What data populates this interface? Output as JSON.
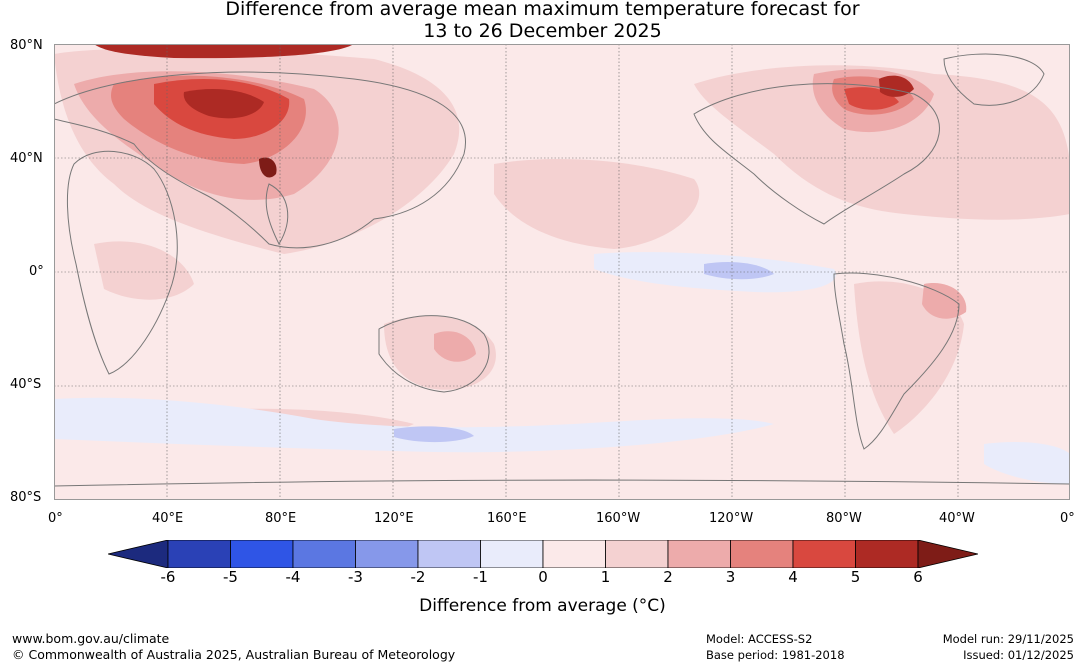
{
  "title": {
    "line1": "Difference from average mean maximum temperature forecast for",
    "line2": "13 to 26 December 2025"
  },
  "map": {
    "lat_labels": [
      "80°N",
      "40°N",
      "0°",
      "40°S",
      "80°S"
    ],
    "lon_labels": [
      "0°",
      "40°E",
      "80°E",
      "120°E",
      "160°E",
      "160°W",
      "120°W",
      "80°W",
      "40°W",
      "0°"
    ]
  },
  "colorbar": {
    "title": "Difference from average (°C)",
    "ticks": [
      "-6",
      "-5",
      "-4",
      "-3",
      "-2",
      "-1",
      "0",
      "1",
      "2",
      "3",
      "4",
      "5",
      "6"
    ],
    "colors": [
      "#1c2a7e",
      "#2a41b6",
      "#2f55e6",
      "#5b77e2",
      "#8698ea",
      "#bfc6f4",
      "#e9ecfb",
      "#fbe9e9",
      "#f4d1d1",
      "#edabab",
      "#e5827d",
      "#d9483f",
      "#ad2a24",
      "#7e1c17"
    ]
  },
  "footer": {
    "site": "www.bom.gov.au/climate",
    "copyright": "© Commonwealth of Australia 2025, Australian Bureau of Meteorology",
    "model": "Model: ACCESS-S2",
    "base_period": "Base period: 1981-2018",
    "model_run": "Model run: 29/11/2025",
    "issued": "Issued: 01/12/2025"
  }
}
